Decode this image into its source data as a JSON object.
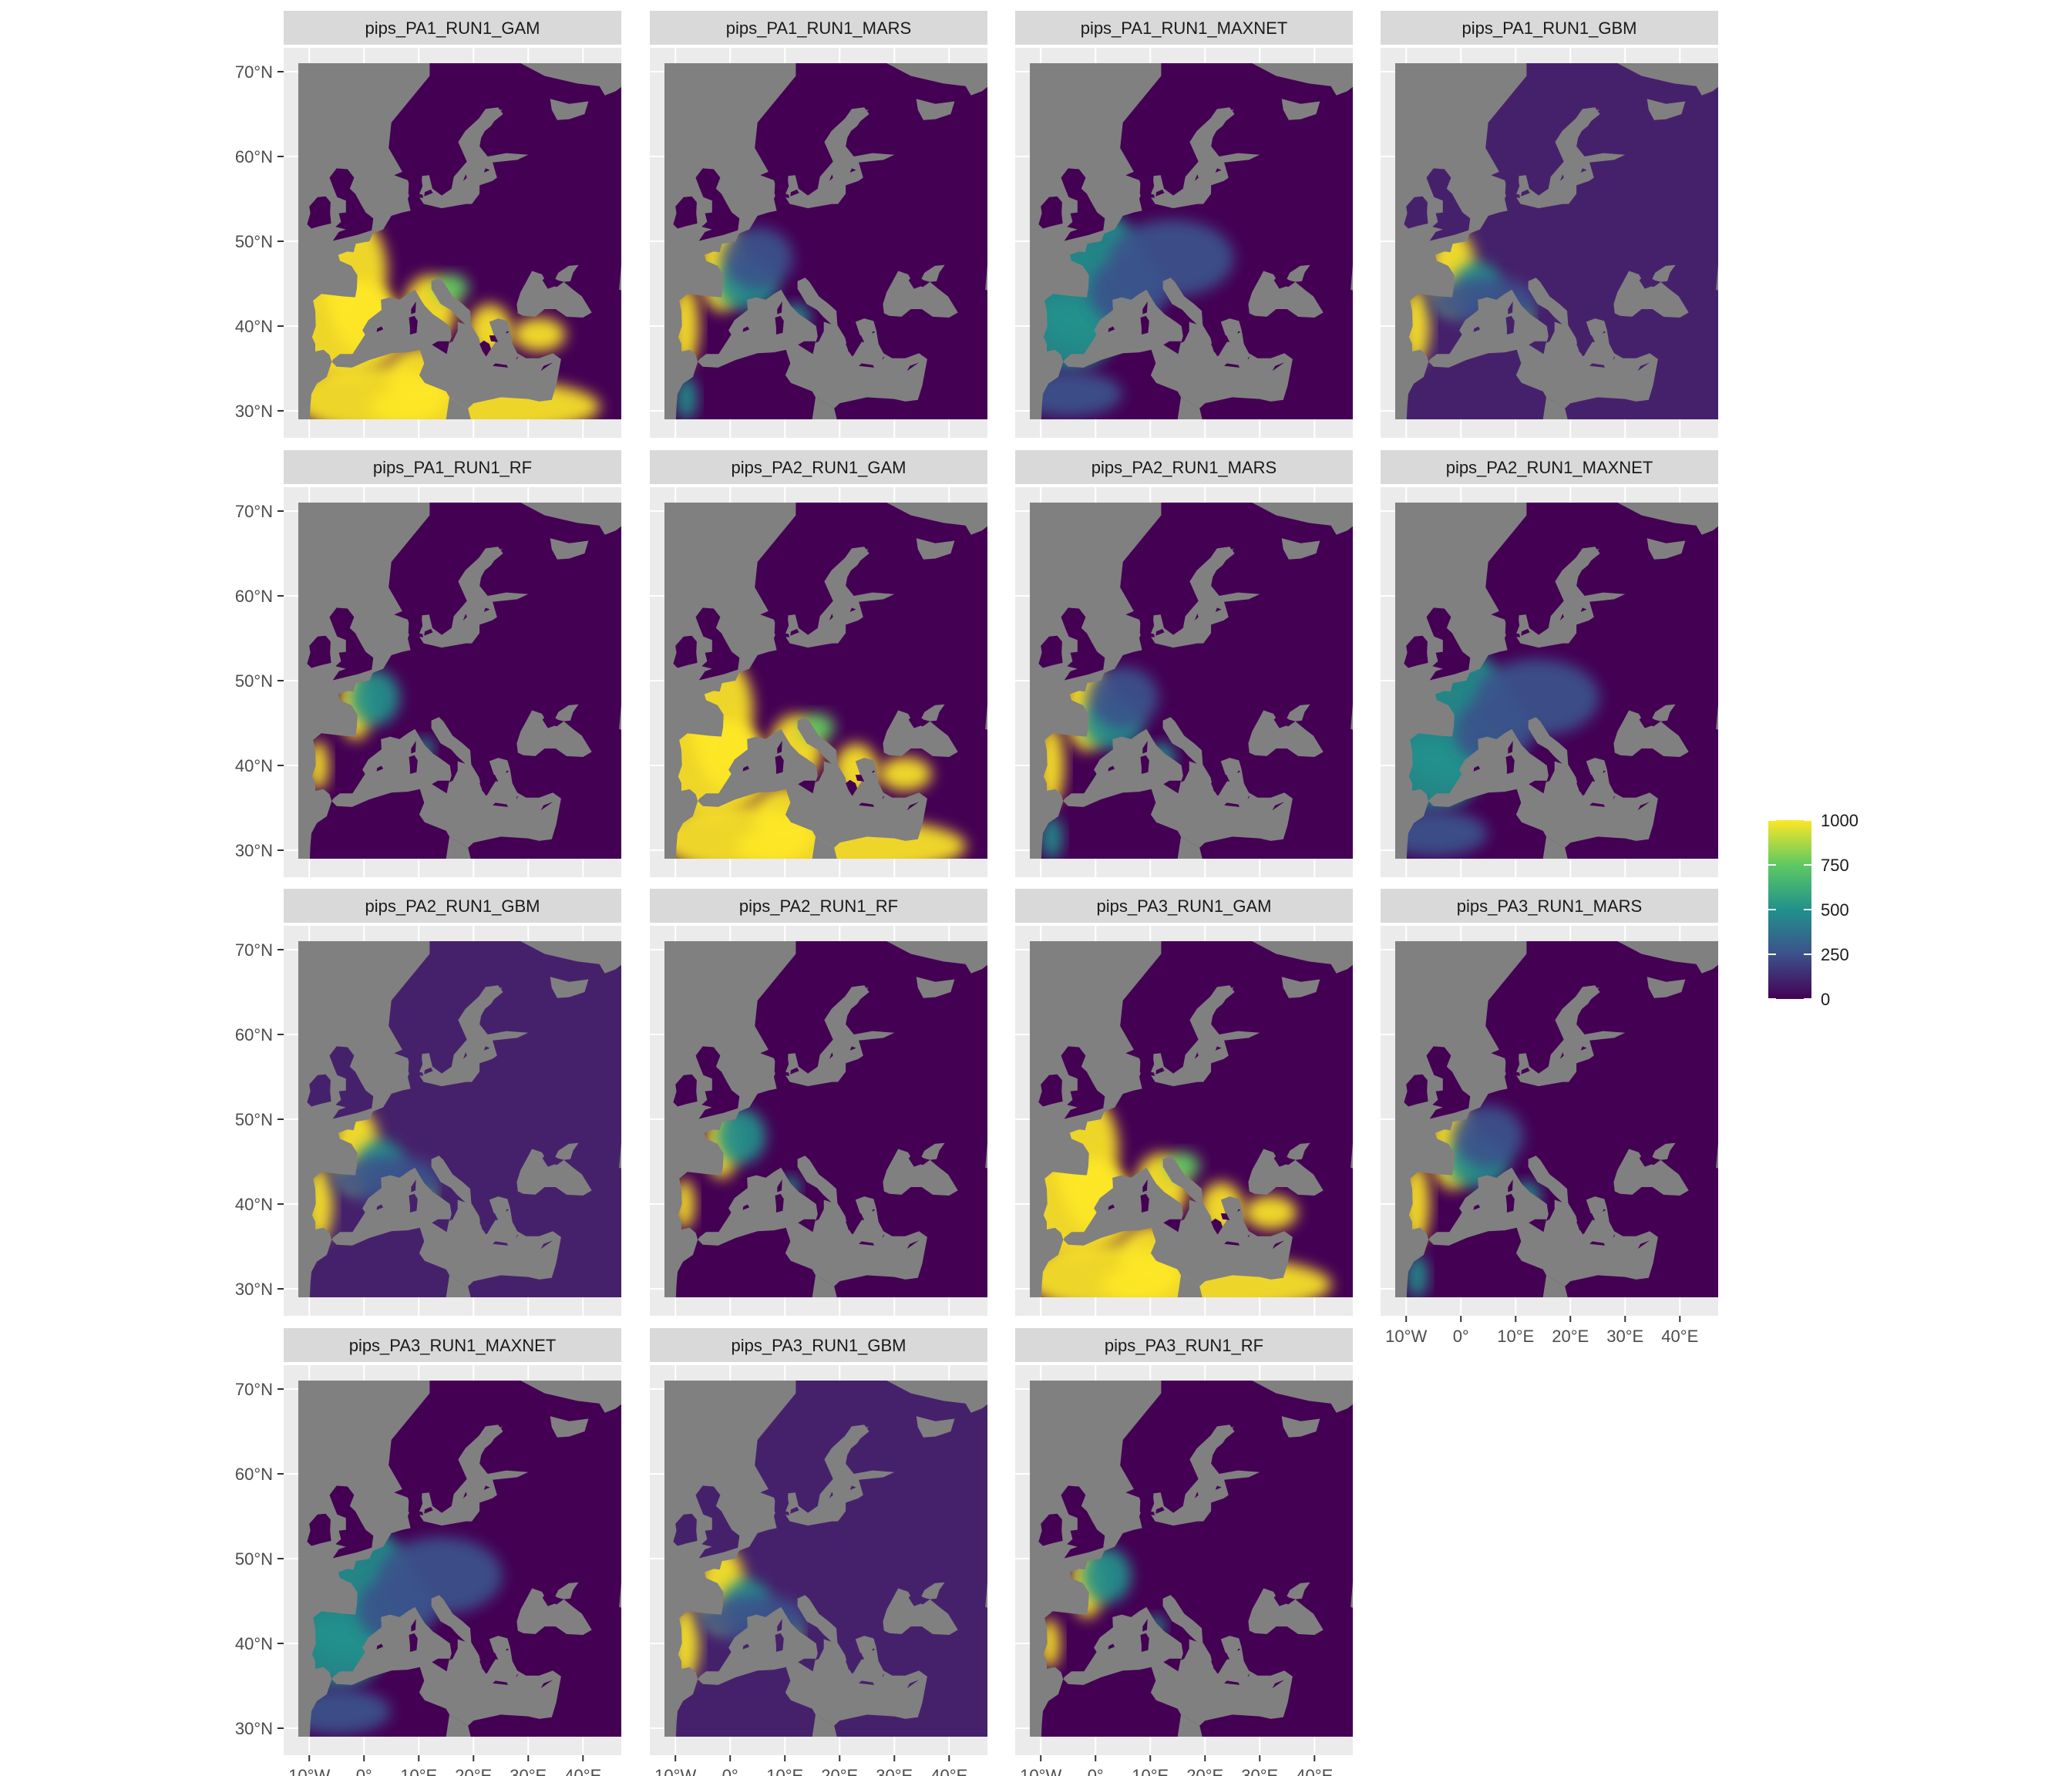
{
  "figure": {
    "panels": [
      {
        "title": "pips_PA1_RUN1_GAM",
        "pattern": "gam_strong"
      },
      {
        "title": "pips_PA1_RUN1_MARS",
        "pattern": "mars"
      },
      {
        "title": "pips_PA1_RUN1_MAXNET",
        "pattern": "maxnet"
      },
      {
        "title": "pips_PA1_RUN1_GBM",
        "pattern": "gbm"
      },
      {
        "title": "pips_PA1_RUN1_RF",
        "pattern": "rf"
      },
      {
        "title": "pips_PA2_RUN1_GAM",
        "pattern": "gam_strong"
      },
      {
        "title": "pips_PA2_RUN1_MARS",
        "pattern": "mars"
      },
      {
        "title": "pips_PA2_RUN1_MAXNET",
        "pattern": "maxnet"
      },
      {
        "title": "pips_PA2_RUN1_GBM",
        "pattern": "gbm"
      },
      {
        "title": "pips_PA2_RUN1_RF",
        "pattern": "rf"
      },
      {
        "title": "pips_PA3_RUN1_GAM",
        "pattern": "gam_strong"
      },
      {
        "title": "pips_PA3_RUN1_MARS",
        "pattern": "mars"
      },
      {
        "title": "pips_PA3_RUN1_MAXNET",
        "pattern": "maxnet"
      },
      {
        "title": "pips_PA3_RUN1_GBM",
        "pattern": "gbm"
      },
      {
        "title": "pips_PA3_RUN1_RF",
        "pattern": "rf"
      }
    ],
    "grid": {
      "columns": 4,
      "rows": 4
    },
    "y_axis": {
      "ticks": [
        "70°N",
        "60°N",
        "50°N",
        "40°N",
        "30°N"
      ],
      "values": [
        70,
        60,
        50,
        40,
        30
      ]
    },
    "x_axis": {
      "ticks": [
        "10°W",
        "0°",
        "10°E",
        "20°E",
        "30°E",
        "40°E"
      ],
      "values": [
        -10,
        0,
        10,
        20,
        30,
        40
      ]
    },
    "extent": {
      "lon": [
        -12,
        47
      ],
      "lat": [
        29,
        71
      ]
    },
    "legend": {
      "ticks": [
        "1000",
        "750",
        "500",
        "250",
        "0"
      ],
      "values": [
        1000,
        750,
        500,
        250,
        0
      ],
      "range": [
        0,
        1000
      ],
      "colors": [
        "#fde725",
        "#5ec962",
        "#21918c",
        "#3b528b",
        "#440154"
      ],
      "position": "right"
    },
    "colors": {
      "strip": "#d9d9d9",
      "panel_background": "#ebebeb",
      "grid": "#ffffff",
      "land_base": "#440154",
      "sea_na": "#808080",
      "gbm_base": "#46216b"
    }
  }
}
